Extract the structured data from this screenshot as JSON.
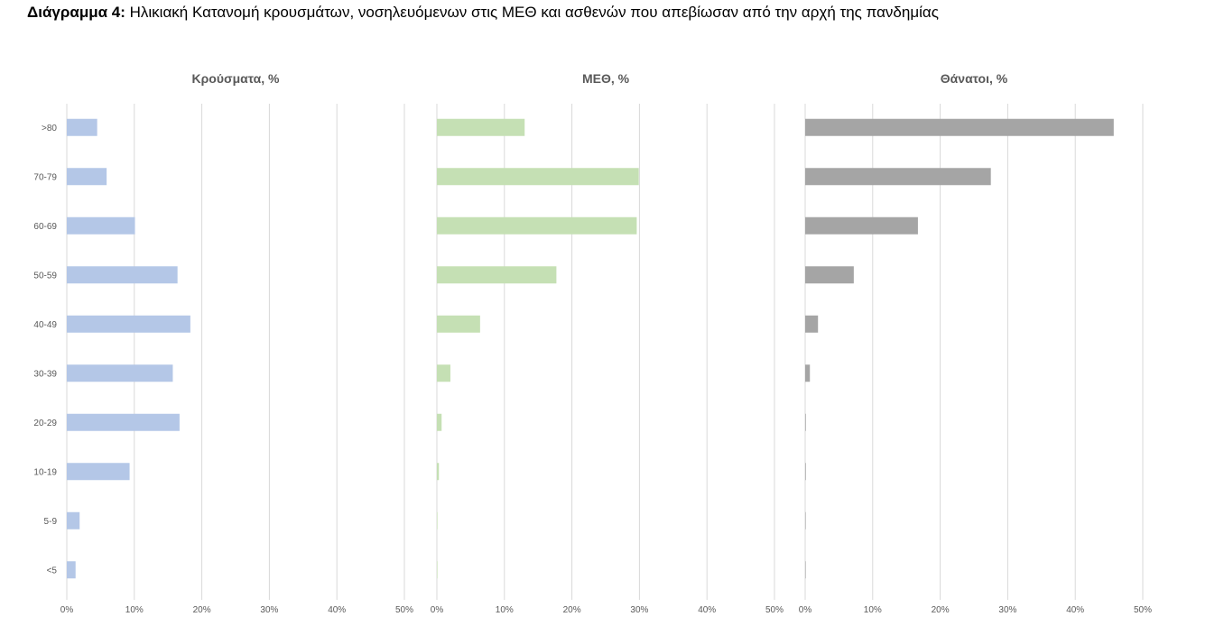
{
  "title": {
    "prefix": "Διάγραμμα 4:",
    "text": " Ηλικιακή Κατανομή κρουσμάτων, νοσηλευόμενων στις ΜΕΘ και ασθενών που απεβίωσαν από την αρχή της πανδημίας"
  },
  "chart_data": [
    {
      "type": "bar",
      "orientation": "horizontal",
      "title": "Κρούσματα, %",
      "categories": [
        ">80",
        "70-79",
        "60-69",
        "50-59",
        "40-49",
        "30-39",
        "20-29",
        "10-19",
        "5-9",
        "<5"
      ],
      "values": [
        4.5,
        5.9,
        10.1,
        16.4,
        18.3,
        15.7,
        16.7,
        9.3,
        1.9,
        1.3
      ],
      "xlim": [
        0,
        50
      ],
      "xticks": [
        "0%",
        "10%",
        "20%",
        "30%",
        "40%",
        "50%"
      ],
      "grid": true,
      "color": "#b4c7e7"
    },
    {
      "type": "bar",
      "orientation": "horizontal",
      "title": "ΜΕΘ, %",
      "categories": [
        ">80",
        "70-79",
        "60-69",
        "50-59",
        "40-49",
        "30-39",
        "20-29",
        "10-19",
        "5-9",
        "<5"
      ],
      "values": [
        13.0,
        29.9,
        29.6,
        17.7,
        6.4,
        2.0,
        0.7,
        0.3,
        0.05,
        0.05
      ],
      "xlim": [
        0,
        50
      ],
      "xticks": [
        "0%",
        "10%",
        "20%",
        "30%",
        "40%",
        "50%"
      ],
      "grid": true,
      "color": "#c5e0b4"
    },
    {
      "type": "bar",
      "orientation": "horizontal",
      "title": "Θάνατοι, %",
      "categories": [
        ">80",
        "70-79",
        "60-69",
        "50-59",
        "40-49",
        "30-39",
        "20-29",
        "10-19",
        "5-9",
        "<5"
      ],
      "values": [
        45.7,
        27.5,
        16.7,
        7.2,
        1.9,
        0.7,
        0.1,
        0.1,
        0.05,
        0.05
      ],
      "xlim": [
        0,
        50
      ],
      "xticks": [
        "0%",
        "10%",
        "20%",
        "30%",
        "40%",
        "50%"
      ],
      "grid": true,
      "color": "#a5a5a5"
    }
  ]
}
